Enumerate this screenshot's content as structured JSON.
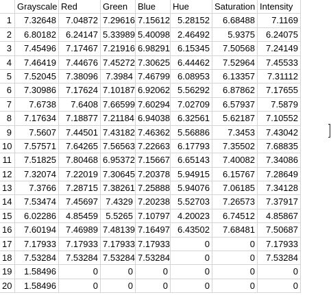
{
  "sheet": {
    "headers": [
      "Grayscale",
      "Red",
      "Green",
      "Blue",
      "Hue",
      "Saturation",
      "Intensity"
    ],
    "rows": [
      {
        "num": "1",
        "cells": [
          "7.32648",
          "7.04872",
          "7.29616",
          "7.15612",
          "5.28152",
          "6.68488",
          "7.1169"
        ]
      },
      {
        "num": "2",
        "cells": [
          "6.80182",
          "6.24147",
          "5.33989",
          "5.40098",
          "2.46492",
          "5.9375",
          "6.24075"
        ]
      },
      {
        "num": "3",
        "cells": [
          "7.45496",
          "7.17467",
          "7.21916",
          "6.98291",
          "6.15345",
          "7.50568",
          "7.24149"
        ]
      },
      {
        "num": "4",
        "cells": [
          "7.46419",
          "7.44676",
          "7.45272",
          "7.30625",
          "6.44462",
          "7.52964",
          "7.45533"
        ]
      },
      {
        "num": "5",
        "cells": [
          "7.52045",
          "7.38096",
          "7.3984",
          "7.46799",
          "6.08953",
          "6.13357",
          "7.31112"
        ]
      },
      {
        "num": "6",
        "cells": [
          "7.30986",
          "7.17624",
          "7.10187",
          "6.92062",
          "5.56292",
          "6.87862",
          "7.17655"
        ]
      },
      {
        "num": "7",
        "cells": [
          "7.6738",
          "7.6408",
          "7.66599",
          "7.60294",
          "7.02709",
          "6.57937",
          "7.5879"
        ]
      },
      {
        "num": "8",
        "cells": [
          "7.17634",
          "7.18877",
          "7.21184",
          "6.94038",
          "6.32561",
          "5.62187",
          "7.10552"
        ]
      },
      {
        "num": "9",
        "cells": [
          "7.5607",
          "7.44501",
          "7.43182",
          "7.46362",
          "5.56886",
          "7.3453",
          "7.43042"
        ]
      },
      {
        "num": "10",
        "cells": [
          "7.57571",
          "7.64265",
          "7.56563",
          "7.22663",
          "6.17793",
          "7.35502",
          "7.68835"
        ]
      },
      {
        "num": "11",
        "cells": [
          "7.51825",
          "7.80468",
          "6.95372",
          "7.15667",
          "6.65143",
          "7.40082",
          "7.34086"
        ]
      },
      {
        "num": "12",
        "cells": [
          "7.32074",
          "7.22019",
          "7.30645",
          "7.20378",
          "5.94915",
          "6.15767",
          "7.28649"
        ]
      },
      {
        "num": "13",
        "cells": [
          "7.3766",
          "7.28715",
          "7.38261",
          "7.25888",
          "5.94076",
          "7.06185",
          "7.34128"
        ]
      },
      {
        "num": "14",
        "cells": [
          "7.53474",
          "7.45697",
          "7.4329",
          "7.20238",
          "5.52703",
          "7.26573",
          "7.37917"
        ]
      },
      {
        "num": "15",
        "cells": [
          "6.02286",
          "4.85459",
          "5.5265",
          "7.10797",
          "4.20023",
          "6.74512",
          "4.85867"
        ]
      },
      {
        "num": "16",
        "cells": [
          "7.60194",
          "7.46989",
          "7.48139",
          "7.16497",
          "6.43502",
          "7.68481",
          "7.50687"
        ]
      },
      {
        "num": "17",
        "cells": [
          "7.17933",
          "7.17933",
          "7.17933",
          "7.17933",
          "0",
          "0",
          "7.17933"
        ]
      },
      {
        "num": "18",
        "cells": [
          "7.53284",
          "7.53284",
          "7.53284",
          "7.53284",
          "0",
          "0",
          "7.53284"
        ]
      },
      {
        "num": "19",
        "cells": [
          "1.58496",
          "0",
          "0",
          "0",
          "0",
          "0",
          "0"
        ]
      },
      {
        "num": "20",
        "cells": [
          "1.58496",
          "0",
          "0",
          "0",
          "0",
          "0",
          "0"
        ]
      }
    ]
  }
}
